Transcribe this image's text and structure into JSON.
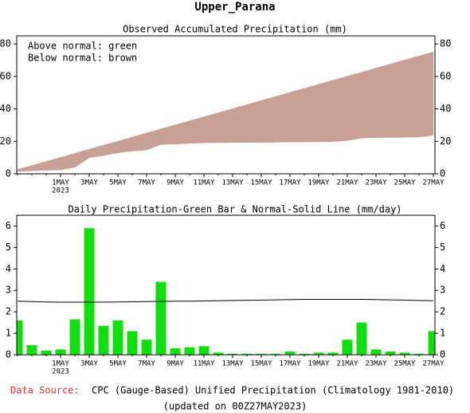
{
  "title": "Upper_Parana",
  "chart_data": [
    {
      "type": "area",
      "title": "Observed Accumulated Precipitation (mm)",
      "annotations": [
        "Above normal: green",
        "Below normal: brown"
      ],
      "above_color": "#11dd11",
      "below_color": "#c8a096",
      "categories": [
        null,
        null,
        null,
        "1MAY",
        null,
        "3MAY",
        null,
        "5MAY",
        null,
        "7MAY",
        null,
        "9MAY",
        null,
        "11MAY",
        null,
        "13MAY",
        null,
        "15MAY",
        null,
        "17MAY",
        null,
        "19MAY",
        null,
        "21MAY",
        null,
        "23MAY",
        null,
        "25MAY",
        null,
        "27MAY"
      ],
      "x_sublabel": "2023",
      "series": [
        {
          "values": [
            1.6,
            2.05,
            2.25,
            2.5,
            4.15,
            10.05,
            11.4,
            13,
            14.1,
            14.8,
            18.2,
            18.5,
            18.85,
            19.25,
            19.35,
            19.4,
            19.45,
            19.5,
            19.55,
            19.7,
            19.75,
            19.85,
            19.95,
            20.65,
            22.15,
            22.4,
            22.55,
            22.65,
            22.7,
            23.8
          ]
        },
        {
          "values": [
            2.5,
            5,
            7.5,
            10,
            12.5,
            15,
            17.5,
            20,
            22.5,
            25,
            27.5,
            30,
            32.5,
            35,
            37.5,
            40,
            42.5,
            45,
            47.5,
            50,
            52.5,
            55,
            57.5,
            60,
            62.5,
            65,
            67.5,
            70,
            72.5,
            75
          ]
        }
      ],
      "ylim": [
        0,
        85
      ],
      "yticks": [
        0,
        20,
        40,
        60,
        80
      ]
    },
    {
      "type": "bar",
      "title": "Daily Precipitation-Green Bar & Normal-Solid Line (mm/day)",
      "categories": [
        null,
        null,
        null,
        "1MAY",
        null,
        "3MAY",
        null,
        "5MAY",
        null,
        "7MAY",
        null,
        "9MAY",
        null,
        "11MAY",
        null,
        "13MAY",
        null,
        "15MAY",
        null,
        "17MAY",
        null,
        "19MAY",
        null,
        "21MAY",
        null,
        "23MAY",
        null,
        "25MAY",
        null,
        "27MAY"
      ],
      "x_sublabel": "2023",
      "series": [
        {
          "type": "bar",
          "color": "#11dd11",
          "values": [
            1.6,
            0.45,
            0.2,
            0.25,
            1.65,
            5.9,
            1.35,
            1.6,
            1.1,
            0.7,
            3.4,
            0.3,
            0.35,
            0.4,
            0.1,
            0.05,
            0.05,
            0.05,
            0.05,
            0.15,
            0.05,
            0.1,
            0.1,
            0.7,
            1.5,
            0.25,
            0.15,
            0.1,
            0.05,
            1.1
          ]
        },
        {
          "type": "line",
          "color": "#000000",
          "values": [
            2.5,
            2.48,
            2.46,
            2.45,
            2.45,
            2.45,
            2.45,
            2.46,
            2.47,
            2.48,
            2.49,
            2.5,
            2.5,
            2.51,
            2.52,
            2.53,
            2.54,
            2.55,
            2.56,
            2.57,
            2.58,
            2.58,
            2.58,
            2.58,
            2.58,
            2.57,
            2.56,
            2.55,
            2.53,
            2.52
          ]
        }
      ],
      "ylim": [
        0,
        6.5
      ],
      "yticks": [
        0,
        1,
        2,
        3,
        4,
        5,
        6
      ]
    }
  ],
  "footer": {
    "source_label": "Data Source:",
    "source": "CPC (Gauge-Based) Unified Precipitation (Climatology 1981-2010)",
    "updated": "(updated on 00Z27MAY2023)"
  }
}
